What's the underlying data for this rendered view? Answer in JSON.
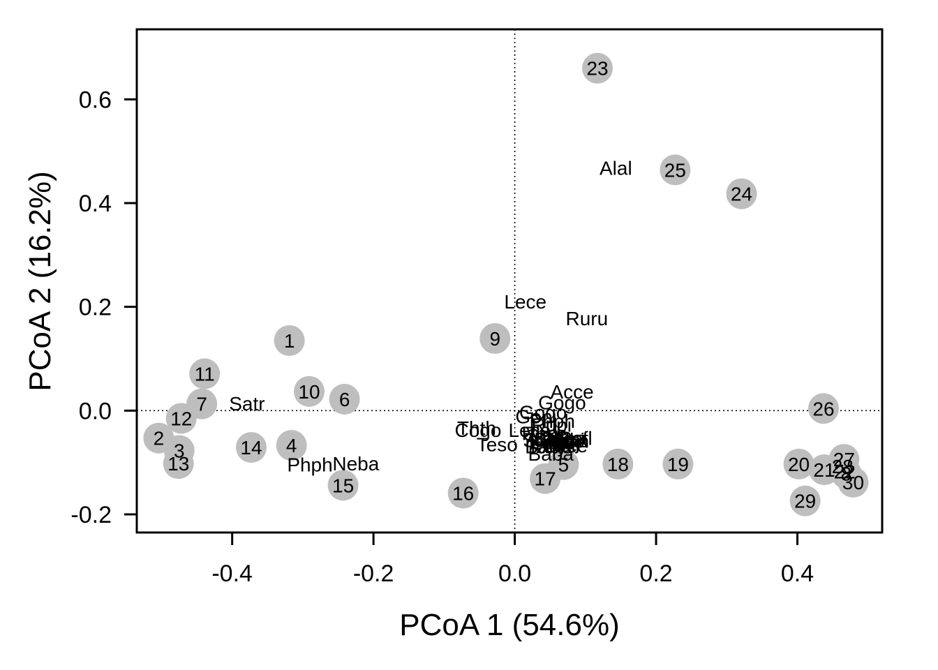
{
  "chart_data": {
    "type": "scatter",
    "title": "",
    "xlabel": "PCoA 1 (54.6%)",
    "ylabel": "PCoA 2 (16.2%)",
    "xlim": [
      -0.535,
      0.52
    ],
    "ylim": [
      -0.235,
      0.735
    ],
    "xticks": [
      -0.4,
      -0.2,
      0.0,
      0.2,
      0.4
    ],
    "xtick_labels": [
      "-0.4",
      "-0.2",
      "0.0",
      "0.2",
      "0.4"
    ],
    "yticks": [
      -0.2,
      0.0,
      0.2,
      0.4,
      0.6
    ],
    "ytick_labels": [
      "-0.2",
      "0.0",
      "0.2",
      "0.4",
      "0.6"
    ],
    "reference_lines": {
      "x": 0,
      "y": 0,
      "style": "dotted"
    },
    "grid": false,
    "colors": {
      "site_points": "#bebebe",
      "text": "#000000",
      "axes": "#000000"
    },
    "sites": [
      {
        "label": "1",
        "x": -0.319,
        "y": 0.135
      },
      {
        "label": "2",
        "x": -0.504,
        "y": -0.053
      },
      {
        "label": "3",
        "x": -0.475,
        "y": -0.077
      },
      {
        "label": "4",
        "x": -0.316,
        "y": -0.067
      },
      {
        "label": "5",
        "x": 0.069,
        "y": -0.104
      },
      {
        "label": "6",
        "x": -0.241,
        "y": 0.022
      },
      {
        "label": "7",
        "x": -0.443,
        "y": 0.013
      },
      {
        "label": "8",
        "x": 0.469,
        "y": -0.121
      },
      {
        "label": "9",
        "x": -0.028,
        "y": 0.139
      },
      {
        "label": "10",
        "x": -0.291,
        "y": 0.037
      },
      {
        "label": "11",
        "x": -0.439,
        "y": 0.071
      },
      {
        "label": "12",
        "x": -0.472,
        "y": -0.015
      },
      {
        "label": "13",
        "x": -0.476,
        "y": -0.102
      },
      {
        "label": "14",
        "x": -0.373,
        "y": -0.071
      },
      {
        "label": "15",
        "x": -0.243,
        "y": -0.144
      },
      {
        "label": "16",
        "x": -0.073,
        "y": -0.159
      },
      {
        "label": "17",
        "x": 0.043,
        "y": -0.131
      },
      {
        "label": "18",
        "x": 0.146,
        "y": -0.103
      },
      {
        "label": "19",
        "x": 0.231,
        "y": -0.103
      },
      {
        "label": "20",
        "x": 0.402,
        "y": -0.103
      },
      {
        "label": "21",
        "x": 0.438,
        "y": -0.114
      },
      {
        "label": "22",
        "x": 0.467,
        "y": -0.117
      },
      {
        "label": "23",
        "x": 0.117,
        "y": 0.66
      },
      {
        "label": "24",
        "x": 0.321,
        "y": 0.418
      },
      {
        "label": "25",
        "x": 0.227,
        "y": 0.464
      },
      {
        "label": "26",
        "x": 0.437,
        "y": 0.004
      },
      {
        "label": "27",
        "x": 0.466,
        "y": -0.094
      },
      {
        "label": "28",
        "x": 0.464,
        "y": -0.107
      },
      {
        "label": "29",
        "x": 0.411,
        "y": -0.174
      },
      {
        "label": "30",
        "x": 0.479,
        "y": -0.138
      }
    ],
    "species": [
      {
        "label": "Alal",
        "x": 0.143,
        "y": 0.468
      },
      {
        "label": "Lece",
        "x": 0.015,
        "y": 0.21
      },
      {
        "label": "Ruru",
        "x": 0.102,
        "y": 0.178
      },
      {
        "label": "Satr",
        "x": -0.379,
        "y": 0.014
      },
      {
        "label": "Acce",
        "x": 0.081,
        "y": 0.037
      },
      {
        "label": "Gogo",
        "x": 0.067,
        "y": 0.016
      },
      {
        "label": "Gogo",
        "x": 0.04,
        "y": -0.003
      },
      {
        "label": "Gopi",
        "x": 0.03,
        "y": -0.011
      },
      {
        "label": "Phph",
        "x": 0.053,
        "y": -0.02
      },
      {
        "label": "Rupi",
        "x": 0.052,
        "y": -0.027
      },
      {
        "label": "Thth",
        "x": -0.054,
        "y": -0.033
      },
      {
        "label": "Cogo",
        "x": -0.052,
        "y": -0.037
      },
      {
        "label": "Lece",
        "x": 0.021,
        "y": -0.037
      },
      {
        "label": "Rhse",
        "x": 0.042,
        "y": -0.043
      },
      {
        "label": "Scer",
        "x": 0.045,
        "y": -0.048
      },
      {
        "label": "Alal",
        "x": 0.039,
        "y": -0.052
      },
      {
        "label": "Bajo",
        "x": 0.055,
        "y": -0.055
      },
      {
        "label": "Sqce",
        "x": 0.043,
        "y": -0.057
      },
      {
        "label": "Eslu",
        "x": 0.047,
        "y": -0.061
      },
      {
        "label": "Chna",
        "x": 0.068,
        "y": -0.053
      },
      {
        "label": "Anan",
        "x": 0.073,
        "y": -0.058
      },
      {
        "label": "Blbj",
        "x": 0.069,
        "y": -0.061
      },
      {
        "label": "Pefl",
        "x": 0.086,
        "y": -0.053
      },
      {
        "label": "Titi",
        "x": 0.068,
        "y": -0.064
      },
      {
        "label": "Gyce",
        "x": 0.071,
        "y": -0.067
      },
      {
        "label": "Icme",
        "x": 0.052,
        "y": -0.069
      },
      {
        "label": "Teso",
        "x": -0.025,
        "y": -0.065
      },
      {
        "label": "Babl",
        "x": 0.042,
        "y": -0.069
      },
      {
        "label": "Albi",
        "x": 0.076,
        "y": -0.056
      },
      {
        "label": "Baba",
        "x": 0.051,
        "y": -0.083
      },
      {
        "label": "Phph",
        "x": -0.29,
        "y": -0.104
      },
      {
        "label": "Neba",
        "x": -0.225,
        "y": -0.102
      }
    ]
  }
}
